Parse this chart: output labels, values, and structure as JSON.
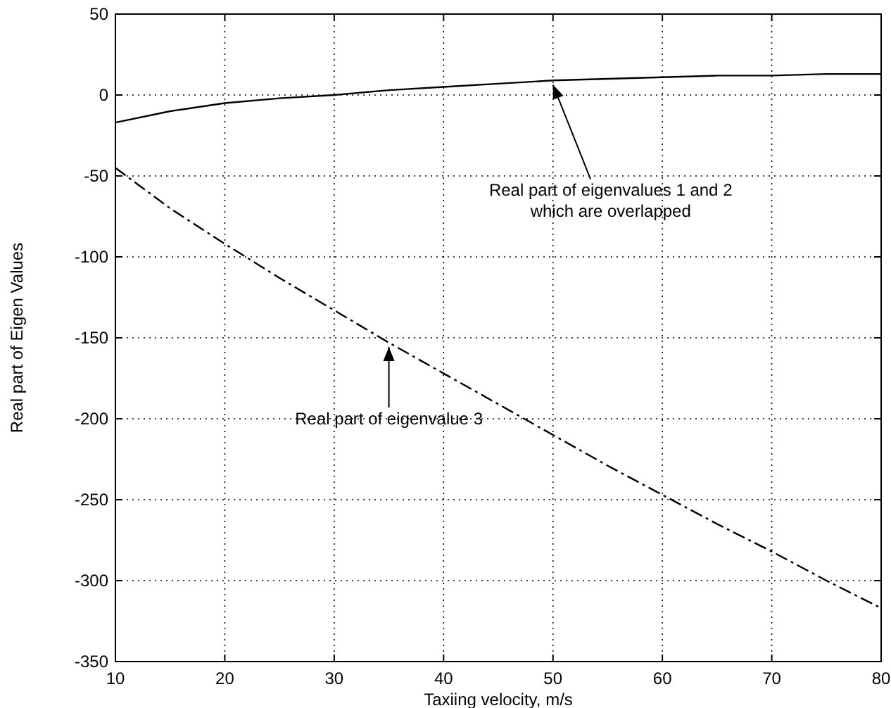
{
  "chart_data": {
    "type": "line",
    "xlabel": "Taxiing velocity, m/s",
    "ylabel": "Real part of Eigen Values",
    "x": [
      10,
      15,
      20,
      25,
      30,
      35,
      40,
      45,
      50,
      55,
      60,
      65,
      70,
      75,
      80
    ],
    "series": [
      {
        "color": "#000000",
        "line_style": "solid",
        "values": [
          -17,
          -10,
          -5,
          -2,
          0,
          3,
          5,
          7,
          9,
          10,
          11,
          12,
          12,
          13,
          13
        ]
      },
      {
        "color": "#000000",
        "line_style": "dashdot",
        "values": [
          -45,
          -70,
          -92,
          -113,
          -133,
          -153,
          -172,
          -191,
          -210,
          -229,
          -247,
          -265,
          -282,
          -300,
          -317
        ]
      }
    ],
    "xlim": [
      10,
      80
    ],
    "xticks": [
      10,
      20,
      30,
      40,
      50,
      60,
      70,
      80
    ],
    "ylim": [
      -350,
      50
    ],
    "yticks": [
      -350,
      -300,
      -250,
      -200,
      -150,
      -100,
      -50,
      0,
      50
    ],
    "grid": true,
    "annotations": [
      {
        "text": "Real part of eigenvalues 1 and 2\nwhich are overlapped",
        "x": 50,
        "y": 9
      },
      {
        "text": "Real part of eigenvalue 3",
        "x": 35,
        "y": -153
      }
    ]
  }
}
